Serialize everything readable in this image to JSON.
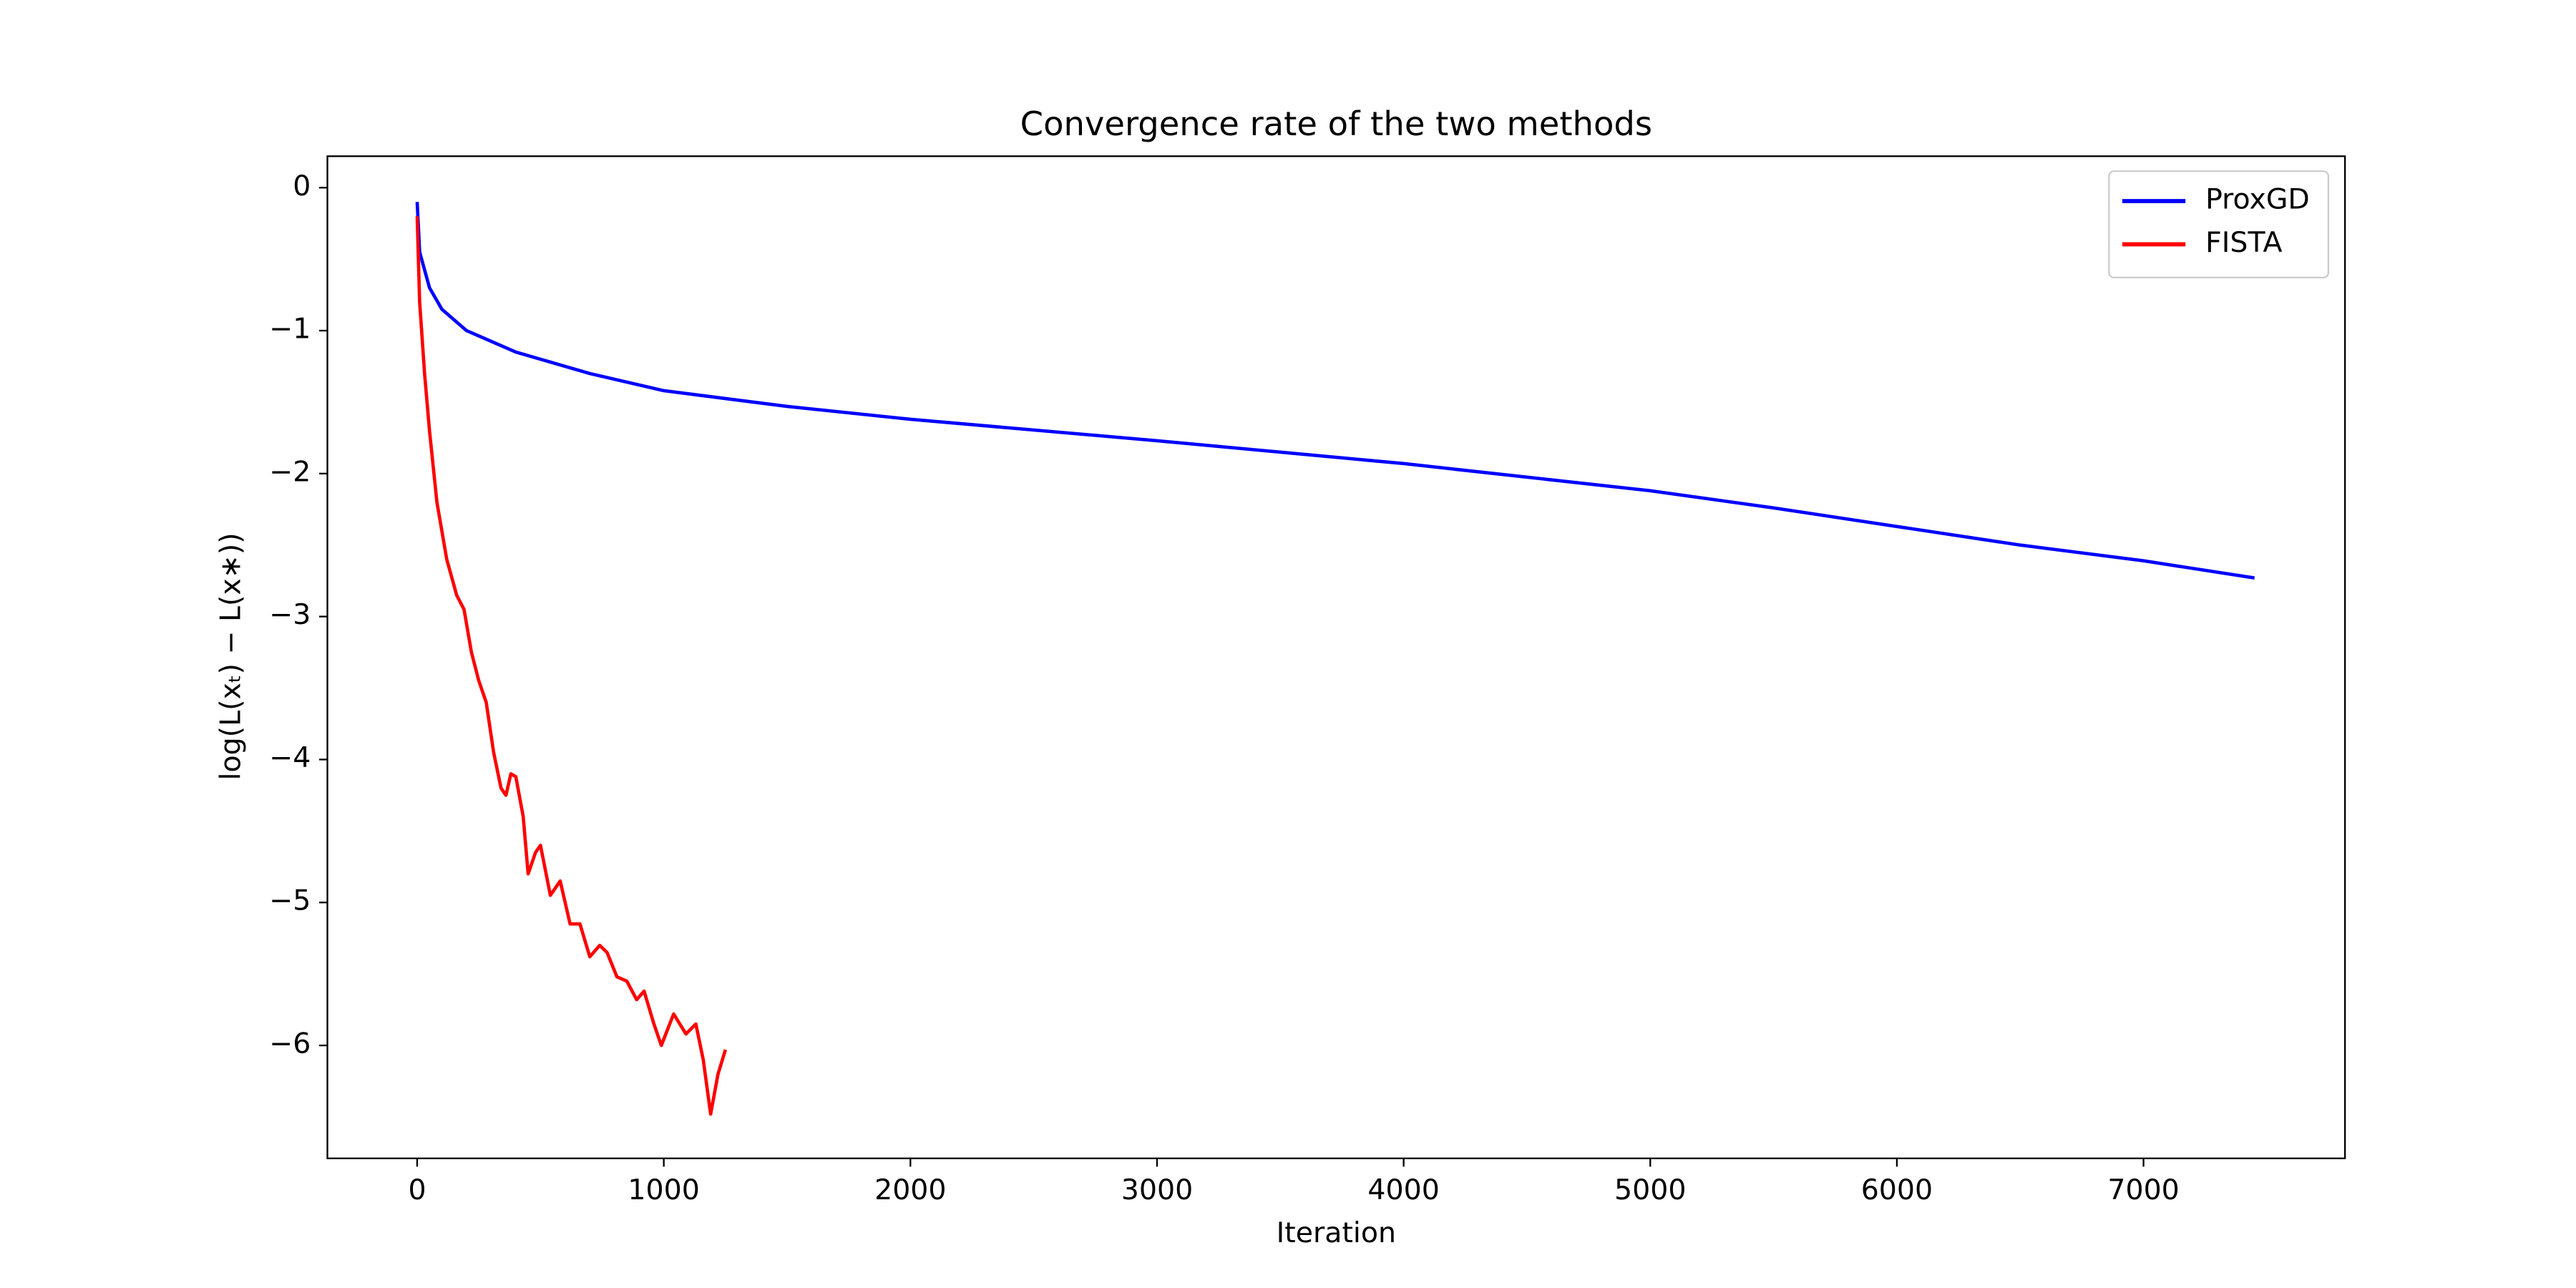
{
  "chart_data": {
    "type": "line",
    "title": "Convergence rate of the two methods",
    "x_label": "Iteration",
    "y_label": "log(L(xₜ) − L(x∗))",
    "xlim": [
      -364,
      7817
    ],
    "ylim": [
      -6.79,
      0.22
    ],
    "xticks": [
      0,
      1000,
      2000,
      3000,
      4000,
      5000,
      6000,
      7000
    ],
    "yticks": [
      {
        "value": 0,
        "label": "0"
      },
      {
        "value": -1,
        "label": "−1"
      },
      {
        "value": -2,
        "label": "−2"
      },
      {
        "value": -3,
        "label": "−3"
      },
      {
        "value": -4,
        "label": "−4"
      },
      {
        "value": -5,
        "label": "−5"
      },
      {
        "value": -6,
        "label": "−6"
      }
    ],
    "legend": "upper right",
    "series": [
      {
        "name": "ProxGD",
        "color": "#0000ff",
        "x": [
          0,
          10,
          50,
          100,
          200,
          400,
          700,
          1000,
          1500,
          2000,
          3000,
          4000,
          5000,
          5500,
          6000,
          6500,
          7000,
          7450
        ],
        "values": [
          -0.1,
          -0.45,
          -0.7,
          -0.85,
          -1.0,
          -1.15,
          -1.3,
          -1.42,
          -1.53,
          -1.62,
          -1.77,
          -1.93,
          -2.12,
          -2.24,
          -2.37,
          -2.5,
          -2.61,
          -2.73
        ]
      },
      {
        "name": "FISTA",
        "color": "#ff0000",
        "x": [
          0,
          10,
          30,
          50,
          80,
          120,
          160,
          190,
          220,
          250,
          280,
          310,
          340,
          360,
          380,
          400,
          430,
          450,
          480,
          500,
          540,
          580,
          620,
          660,
          700,
          740,
          770,
          810,
          850,
          890,
          920,
          960,
          990,
          1040,
          1090,
          1130,
          1160,
          1190,
          1220,
          1250
        ],
        "values": [
          -0.2,
          -0.8,
          -1.3,
          -1.7,
          -2.2,
          -2.6,
          -2.85,
          -2.95,
          -3.25,
          -3.45,
          -3.6,
          -3.95,
          -4.2,
          -4.25,
          -4.1,
          -4.12,
          -4.4,
          -4.8,
          -4.65,
          -4.6,
          -4.95,
          -4.85,
          -5.15,
          -5.15,
          -5.38,
          -5.3,
          -5.35,
          -5.52,
          -5.55,
          -5.68,
          -5.62,
          -5.85,
          -6.0,
          -5.78,
          -5.92,
          -5.85,
          -6.1,
          -6.48,
          -6.2,
          -6.03
        ]
      }
    ]
  }
}
